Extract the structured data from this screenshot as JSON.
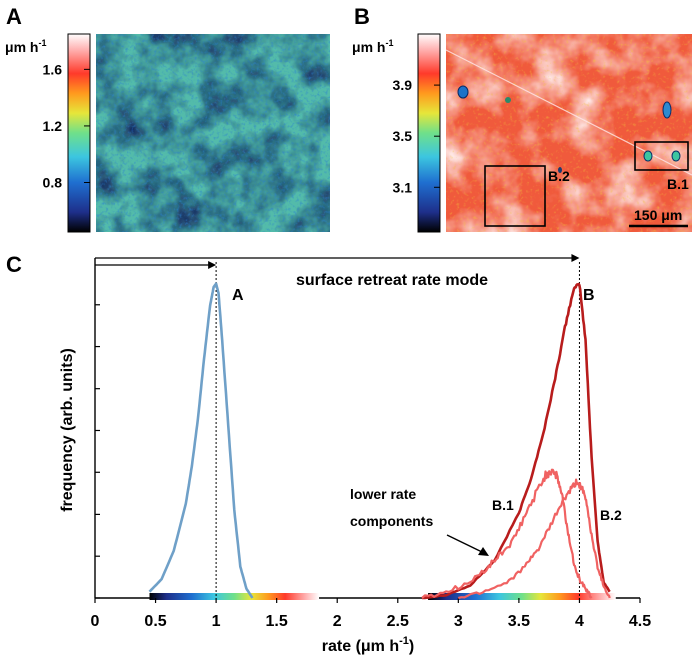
{
  "panels": {
    "a": {
      "letter": "A",
      "unit": "μm h",
      "unit_exp": "-1",
      "ticks": [
        "1.6",
        "1.2",
        "0.8"
      ],
      "tick_values": [
        1.6,
        1.2,
        0.8
      ],
      "range": [
        0.45,
        1.85
      ]
    },
    "b": {
      "letter": "B",
      "unit": "μm h",
      "unit_exp": "-1",
      "ticks": [
        "3.9",
        "3.5",
        "3.1"
      ],
      "tick_values": [
        3.9,
        3.5,
        3.1
      ],
      "range": [
        2.75,
        4.3
      ],
      "regions": [
        "B.2",
        "B.1"
      ],
      "scale_bar": "150 μm"
    },
    "c": {
      "letter": "C"
    }
  },
  "colors": {
    "series_A": "#6fa0c8",
    "series_B": "#b81c1c",
    "series_B1": "#f06262",
    "series_B2": "#f06262",
    "colormap": [
      "#000000",
      "#1e2f8a",
      "#1f6fd0",
      "#3cc6e0",
      "#6fe08a",
      "#e6e63a",
      "#ff9a1e",
      "#ff3a2a",
      "#ffb0b0",
      "#ffffff"
    ]
  },
  "chart_data": {
    "type": "line",
    "xlabel": "rate (μm h",
    "xlabel_exp": "-1",
    "xlabel_close": ")",
    "ylabel": "frequency (arb. units)",
    "xlim": [
      0,
      4.5
    ],
    "ylim": [
      0,
      1.05
    ],
    "x_ticks": [
      "0",
      "0.5",
      "1",
      "1.5",
      "2",
      "2.5",
      "3",
      "3.5",
      "4",
      "4.5"
    ],
    "x_tick_values": [
      0,
      0.5,
      1,
      1.5,
      2,
      2.5,
      3,
      3.5,
      4,
      4.5
    ],
    "y_ticks_labeled": false,
    "y_tick_values": [
      0,
      0.133,
      0.266,
      0.4,
      0.533,
      0.666,
      0.8,
      0.933
    ],
    "series": [
      {
        "name": "A",
        "x": [
          0.45,
          0.55,
          0.65,
          0.75,
          0.8,
          0.85,
          0.9,
          0.95,
          0.98,
          1.0,
          1.02,
          1.05,
          1.1,
          1.15,
          1.2,
          1.25,
          1.3
        ],
        "y": [
          0.02,
          0.06,
          0.15,
          0.3,
          0.42,
          0.57,
          0.76,
          0.93,
          0.99,
          1.0,
          0.97,
          0.82,
          0.55,
          0.28,
          0.1,
          0.03,
          0.0
        ]
      },
      {
        "name": "B",
        "x": [
          2.7,
          2.9,
          3.1,
          3.3,
          3.5,
          3.6,
          3.7,
          3.8,
          3.88,
          3.95,
          4.0,
          4.05,
          4.1,
          4.15,
          4.2,
          4.25
        ],
        "y": [
          0.0,
          0.01,
          0.04,
          0.12,
          0.27,
          0.38,
          0.52,
          0.7,
          0.86,
          0.98,
          1.0,
          0.82,
          0.45,
          0.18,
          0.05,
          0.02
        ]
      },
      {
        "name": "B.1",
        "x": [
          2.7,
          2.9,
          3.1,
          3.25,
          3.35,
          3.45,
          3.55,
          3.65,
          3.72,
          3.78,
          3.82,
          3.86,
          3.9,
          3.95,
          4.0,
          4.05,
          4.1
        ],
        "y": [
          0.0,
          0.02,
          0.05,
          0.1,
          0.14,
          0.18,
          0.26,
          0.34,
          0.39,
          0.41,
          0.38,
          0.32,
          0.22,
          0.12,
          0.06,
          0.03,
          0.0
        ]
      },
      {
        "name": "B.2",
        "x": [
          3.0,
          3.2,
          3.4,
          3.55,
          3.65,
          3.75,
          3.85,
          3.92,
          3.98,
          4.02,
          4.06,
          4.1,
          4.15,
          4.2,
          4.25
        ],
        "y": [
          0.0,
          0.02,
          0.05,
          0.1,
          0.15,
          0.22,
          0.3,
          0.34,
          0.37,
          0.35,
          0.3,
          0.2,
          0.1,
          0.04,
          0.0
        ]
      }
    ],
    "peak_labels": [
      "A",
      "B"
    ],
    "mode_lines": [
      1.0,
      4.0
    ],
    "annotations": {
      "mode": "surface retreat rate mode",
      "lower_rate_line1": "lower rate",
      "lower_rate_line2": "components",
      "label_b1": "B.1",
      "label_b2": "B.2"
    },
    "colorbar_a_range": [
      0.45,
      1.85
    ],
    "colorbar_b_range": [
      2.75,
      4.3
    ]
  }
}
